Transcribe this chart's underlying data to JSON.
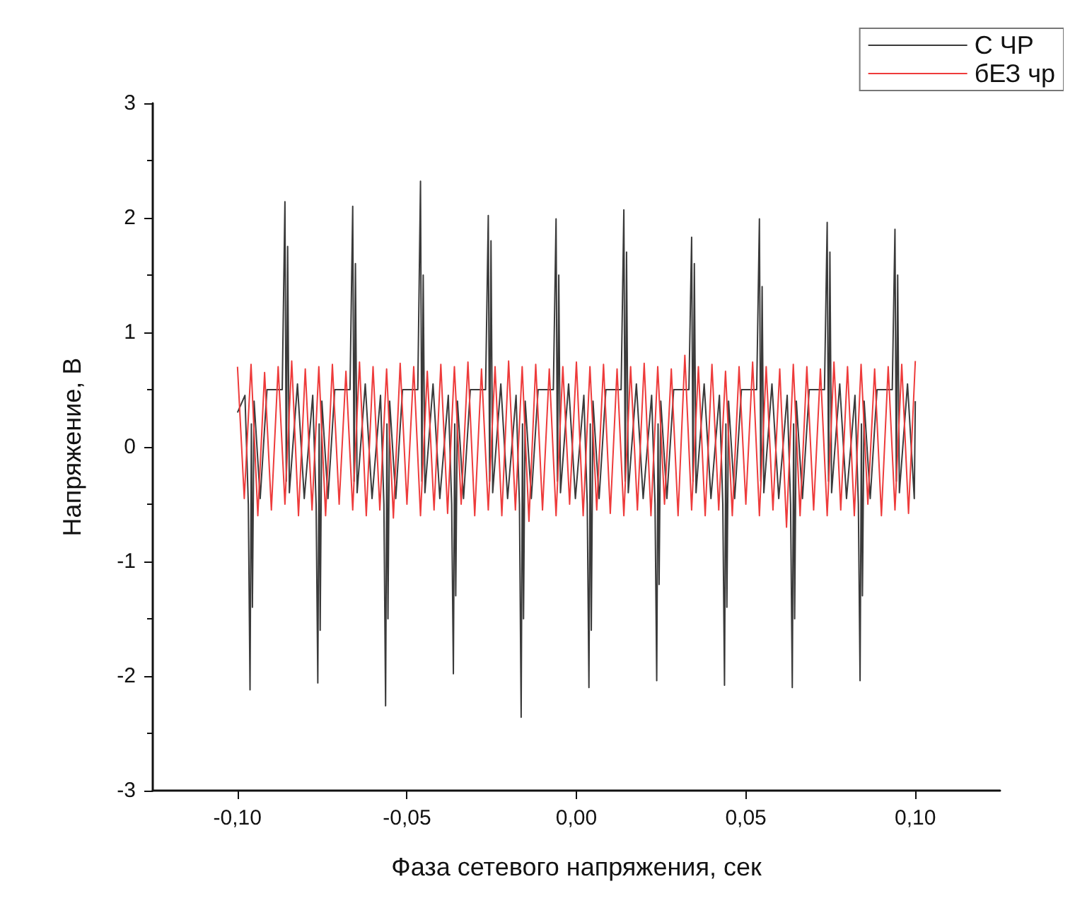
{
  "chart_data": {
    "type": "line",
    "xlabel": "Фаза сетевого напряжения, сек",
    "ylabel": "Напряжение, В",
    "xlim": [
      -0.125,
      0.125
    ],
    "ylim": [
      -3,
      3
    ],
    "xticks": [
      {
        "value": -0.1,
        "label": "-0,10"
      },
      {
        "value": -0.05,
        "label": "-0,05"
      },
      {
        "value": 0,
        "label": "0,00"
      },
      {
        "value": 0.05,
        "label": "0,05"
      },
      {
        "value": 0.1,
        "label": "0,10"
      }
    ],
    "yticks": [
      -3,
      -2,
      -1,
      0,
      1,
      2,
      3
    ],
    "grid": false,
    "legend": "top right",
    "marker": "none",
    "line_style": "solid",
    "series": [
      {
        "name": "С ЧР",
        "color": "#3a3a3a",
        "x": [
          -0.1,
          -0.0978,
          -0.0968,
          -0.0963,
          -0.0959,
          -0.0956,
          -0.0951,
          -0.0933,
          -0.0913,
          -0.0868,
          -0.086,
          -0.0856,
          -0.0852,
          -0.0847,
          -0.0823,
          -0.0803,
          -0.0778,
          -0.0768,
          -0.0763,
          -0.0759,
          -0.0756,
          -0.0751,
          -0.0733,
          -0.0713,
          -0.0668,
          -0.066,
          -0.0656,
          -0.0652,
          -0.0647,
          -0.0623,
          -0.0603,
          -0.0578,
          -0.0568,
          -0.0563,
          -0.0559,
          -0.0556,
          -0.0551,
          -0.0533,
          -0.0513,
          -0.0468,
          -0.046,
          -0.0456,
          -0.0452,
          -0.0447,
          -0.0423,
          -0.0403,
          -0.0378,
          -0.0368,
          -0.0363,
          -0.0359,
          -0.0356,
          -0.0351,
          -0.0333,
          -0.0313,
          -0.0268,
          -0.026,
          -0.0256,
          -0.0252,
          -0.0247,
          -0.0223,
          -0.0203,
          -0.0178,
          -0.0168,
          -0.0163,
          -0.0159,
          -0.0156,
          -0.0151,
          -0.0133,
          -0.0113,
          -0.0068,
          -0.006,
          -0.0056,
          -0.0052,
          -0.0047,
          -0.0023,
          -0.0003,
          0.0022,
          0.0032,
          0.0037,
          0.0041,
          0.0044,
          0.0049,
          0.0067,
          0.0087,
          0.0132,
          0.014,
          0.0144,
          0.0148,
          0.0153,
          0.0177,
          0.0197,
          0.0222,
          0.0232,
          0.0237,
          0.0241,
          0.0244,
          0.0249,
          0.0267,
          0.0287,
          0.0332,
          0.034,
          0.0344,
          0.0348,
          0.0353,
          0.0377,
          0.0397,
          0.0422,
          0.0432,
          0.0437,
          0.0441,
          0.0444,
          0.0449,
          0.0467,
          0.0487,
          0.0532,
          0.054,
          0.0544,
          0.0548,
          0.0553,
          0.0577,
          0.0597,
          0.0622,
          0.0632,
          0.0637,
          0.0641,
          0.0644,
          0.0649,
          0.0667,
          0.0687,
          0.0732,
          0.074,
          0.0744,
          0.0748,
          0.0753,
          0.0777,
          0.0797,
          0.0822,
          0.0832,
          0.0837,
          0.0841,
          0.0844,
          0.0849,
          0.0867,
          0.0887,
          0.0932,
          0.094,
          0.0944,
          0.0948,
          0.0953,
          0.0977,
          0.0997,
          0.1
        ],
        "values": [
          0.3,
          0.45,
          -0.5,
          -2.12,
          0.2,
          -1.4,
          0.4,
          -0.45,
          0.5,
          0.5,
          2.14,
          -0.3,
          1.75,
          -0.4,
          0.55,
          -0.45,
          0.45,
          -0.5,
          -2.06,
          0.2,
          -1.6,
          0.4,
          -0.45,
          0.5,
          0.5,
          2.1,
          -0.3,
          1.6,
          -0.4,
          0.55,
          -0.45,
          0.45,
          -0.5,
          -2.26,
          0.2,
          -1.5,
          0.4,
          -0.45,
          0.5,
          0.5,
          2.32,
          -0.3,
          1.5,
          -0.4,
          0.55,
          -0.45,
          0.45,
          -0.5,
          -1.98,
          0.2,
          -1.3,
          0.4,
          -0.45,
          0.5,
          0.5,
          2.02,
          -0.3,
          1.8,
          -0.4,
          0.55,
          -0.45,
          0.45,
          -0.5,
          -2.36,
          0.2,
          -1.5,
          0.4,
          -0.45,
          0.5,
          0.5,
          1.99,
          -0.3,
          1.5,
          -0.4,
          0.55,
          -0.45,
          0.45,
          -0.5,
          -2.1,
          0.2,
          -1.6,
          0.4,
          -0.45,
          0.5,
          0.5,
          2.07,
          -0.3,
          1.7,
          -0.4,
          0.55,
          -0.45,
          0.45,
          -0.5,
          -2.04,
          0.2,
          -1.2,
          0.4,
          -0.45,
          0.5,
          0.5,
          1.83,
          -0.3,
          1.6,
          -0.4,
          0.55,
          -0.45,
          0.45,
          -0.5,
          -2.08,
          0.2,
          -1.4,
          0.4,
          -0.45,
          0.5,
          0.5,
          1.99,
          -0.3,
          1.4,
          -0.4,
          0.55,
          -0.45,
          0.45,
          -0.5,
          -2.1,
          0.2,
          -1.5,
          0.4,
          -0.45,
          0.5,
          0.5,
          1.96,
          -0.3,
          1.7,
          -0.4,
          0.55,
          -0.45,
          0.45,
          -0.5,
          -2.04,
          0.2,
          -1.3,
          0.4,
          -0.45,
          0.5,
          0.5,
          1.9,
          -0.3,
          1.5,
          -0.4,
          0.55,
          -0.45,
          0.4
        ]
      },
      {
        "name": "бЕЗ чр",
        "color": "#ee3b3b",
        "x": [
          -0.1,
          -0.098,
          -0.096,
          -0.094,
          -0.092,
          -0.09,
          -0.088,
          -0.086,
          -0.084,
          -0.082,
          -0.08,
          -0.078,
          -0.076,
          -0.074,
          -0.072,
          -0.07,
          -0.068,
          -0.066,
          -0.064,
          -0.062,
          -0.06,
          -0.058,
          -0.056,
          -0.054,
          -0.052,
          -0.05,
          -0.048,
          -0.046,
          -0.044,
          -0.042,
          -0.04,
          -0.038,
          -0.036,
          -0.034,
          -0.032,
          -0.03,
          -0.028,
          -0.026,
          -0.024,
          -0.022,
          -0.02,
          -0.018,
          -0.016,
          -0.014,
          -0.012,
          -0.01,
          -0.008,
          -0.006,
          -0.004,
          -0.002,
          0,
          0.002,
          0.004,
          0.006,
          0.008,
          0.01,
          0.012,
          0.014,
          0.016,
          0.018,
          0.02,
          0.022,
          0.024,
          0.026,
          0.028,
          0.03,
          0.032,
          0.034,
          0.036,
          0.038,
          0.04,
          0.042,
          0.044,
          0.046,
          0.048,
          0.05,
          0.052,
          0.054,
          0.056,
          0.058,
          0.06,
          0.062,
          0.064,
          0.066,
          0.068,
          0.07,
          0.072,
          0.074,
          0.076,
          0.078,
          0.08,
          0.082,
          0.084,
          0.086,
          0.088,
          0.09,
          0.092,
          0.094,
          0.096,
          0.098,
          0.1
        ],
        "values": [
          0.7,
          -0.45,
          0.72,
          -0.6,
          0.65,
          -0.55,
          0.7,
          -0.5,
          0.75,
          -0.6,
          0.68,
          -0.55,
          0.7,
          -0.6,
          0.72,
          -0.5,
          0.66,
          -0.55,
          0.74,
          -0.6,
          0.7,
          -0.55,
          0.68,
          -0.62,
          0.73,
          -0.5,
          0.7,
          -0.6,
          0.66,
          -0.55,
          0.72,
          -0.58,
          0.7,
          -0.5,
          0.74,
          -0.6,
          0.68,
          -0.55,
          0.7,
          -0.6,
          0.75,
          -0.55,
          0.7,
          -0.65,
          0.72,
          -0.55,
          0.68,
          -0.6,
          0.7,
          -0.5,
          0.74,
          -0.6,
          0.7,
          -0.55,
          0.72,
          -0.58,
          0.68,
          -0.6,
          0.7,
          -0.55,
          0.73,
          -0.6,
          0.7,
          -0.5,
          0.68,
          -0.6,
          0.8,
          -0.55,
          0.7,
          -0.6,
          0.72,
          -0.55,
          0.66,
          -0.6,
          0.7,
          -0.5,
          0.74,
          -0.6,
          0.7,
          -0.55,
          0.68,
          -0.7,
          0.72,
          -0.6,
          0.7,
          -0.55,
          0.68,
          -0.6,
          0.74,
          -0.55,
          0.7,
          -0.6,
          0.72,
          -0.5,
          0.68,
          -0.6,
          0.7,
          -0.55,
          0.72,
          -0.58,
          0.75
        ]
      }
    ]
  }
}
